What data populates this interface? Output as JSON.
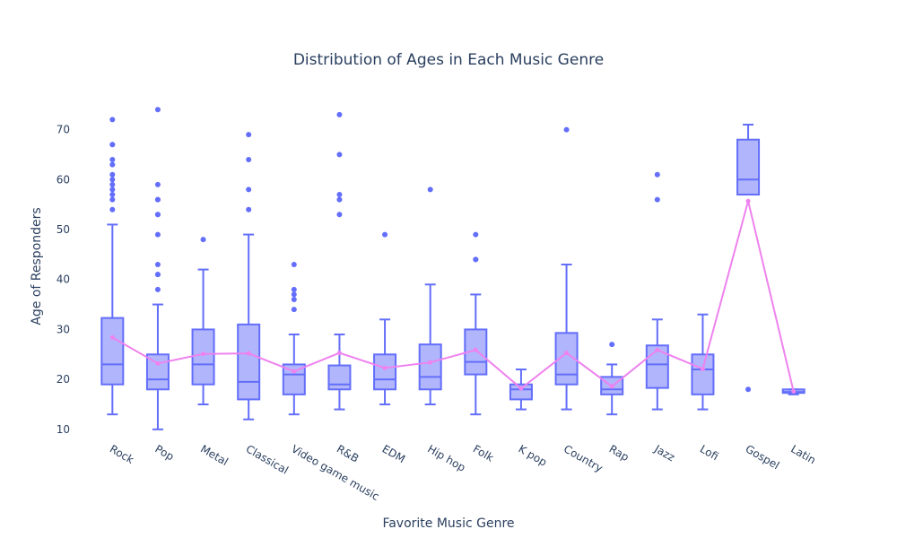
{
  "chart_data": {
    "type": "box",
    "title": "Distribution of Ages in Each Music Genre",
    "xlabel": "Favorite Music Genre",
    "ylabel": "Age of Responders",
    "ylim": [
      8,
      78
    ],
    "yticks": [
      10,
      20,
      30,
      40,
      50,
      60,
      70
    ],
    "grid": false,
    "colors": {
      "box": "#636efa",
      "mean_line": "#ee82ee",
      "text": "#2a3f5f"
    },
    "categories": [
      "Rock",
      "Pop",
      "Metal",
      "Classical",
      "Video game music",
      "R&B",
      "EDM",
      "Hip hop",
      "Folk",
      "K pop",
      "Country",
      "Rap",
      "Jazz",
      "Lofi",
      "Gospel",
      "Latin"
    ],
    "boxes": [
      {
        "min": 13,
        "q1": 19,
        "median": 23,
        "q3": 32.3,
        "max": 51,
        "outliers": [
          54,
          56,
          57,
          58,
          59,
          60,
          61,
          63,
          64,
          67,
          67,
          72
        ]
      },
      {
        "min": 10,
        "q1": 18,
        "median": 20,
        "q3": 25,
        "max": 35,
        "outliers": [
          38,
          41,
          41,
          43,
          49,
          53,
          53,
          56,
          56,
          59,
          74
        ]
      },
      {
        "min": 15,
        "q1": 19,
        "median": 23,
        "q3": 30,
        "max": 42,
        "outliers": [
          48
        ]
      },
      {
        "min": 12,
        "q1": 16,
        "median": 19.5,
        "q3": 31,
        "max": 49,
        "outliers": [
          54,
          58,
          64,
          69
        ]
      },
      {
        "min": 13,
        "q1": 17,
        "median": 21,
        "q3": 23,
        "max": 29,
        "outliers": [
          34,
          36,
          37,
          38,
          43
        ]
      },
      {
        "min": 14,
        "q1": 18,
        "median": 19,
        "q3": 22.8,
        "max": 29,
        "outliers": [
          53,
          56,
          57,
          65,
          73
        ]
      },
      {
        "min": 15,
        "q1": 18,
        "median": 20,
        "q3": 25,
        "max": 32,
        "outliers": [
          49
        ]
      },
      {
        "min": 15,
        "q1": 18,
        "median": 20.5,
        "q3": 27,
        "max": 39,
        "outliers": [
          58
        ]
      },
      {
        "min": 13,
        "q1": 21,
        "median": 23.5,
        "q3": 30,
        "max": 37,
        "outliers": [
          44,
          44,
          49
        ]
      },
      {
        "min": 14,
        "q1": 16,
        "median": 18,
        "q3": 19,
        "max": 22,
        "outliers": []
      },
      {
        "min": 14,
        "q1": 19,
        "median": 21,
        "q3": 29.3,
        "max": 43,
        "outliers": [
          70
        ]
      },
      {
        "min": 13,
        "q1": 17,
        "median": 18,
        "q3": 20.5,
        "max": 23,
        "outliers": [
          27
        ]
      },
      {
        "min": 14,
        "q1": 18.3,
        "median": 23,
        "q3": 26.8,
        "max": 32,
        "outliers": [
          56,
          61
        ]
      },
      {
        "min": 14,
        "q1": 17,
        "median": 22,
        "q3": 25,
        "max": 33,
        "outliers": []
      },
      {
        "min": 57,
        "q1": 57,
        "median": 60,
        "q3": 68,
        "max": 71,
        "outliers": [
          18
        ]
      },
      {
        "min": 17,
        "q1": 17.3,
        "median": 17.5,
        "q3": 18,
        "max": 18,
        "outliers": []
      }
    ],
    "mean_line": [
      28.4,
      23.2,
      25.1,
      25.2,
      21.6,
      25.3,
      22.3,
      23.4,
      25.9,
      18.2,
      25.3,
      18.6,
      25.9,
      22.1,
      55.7,
      17.6
    ]
  }
}
